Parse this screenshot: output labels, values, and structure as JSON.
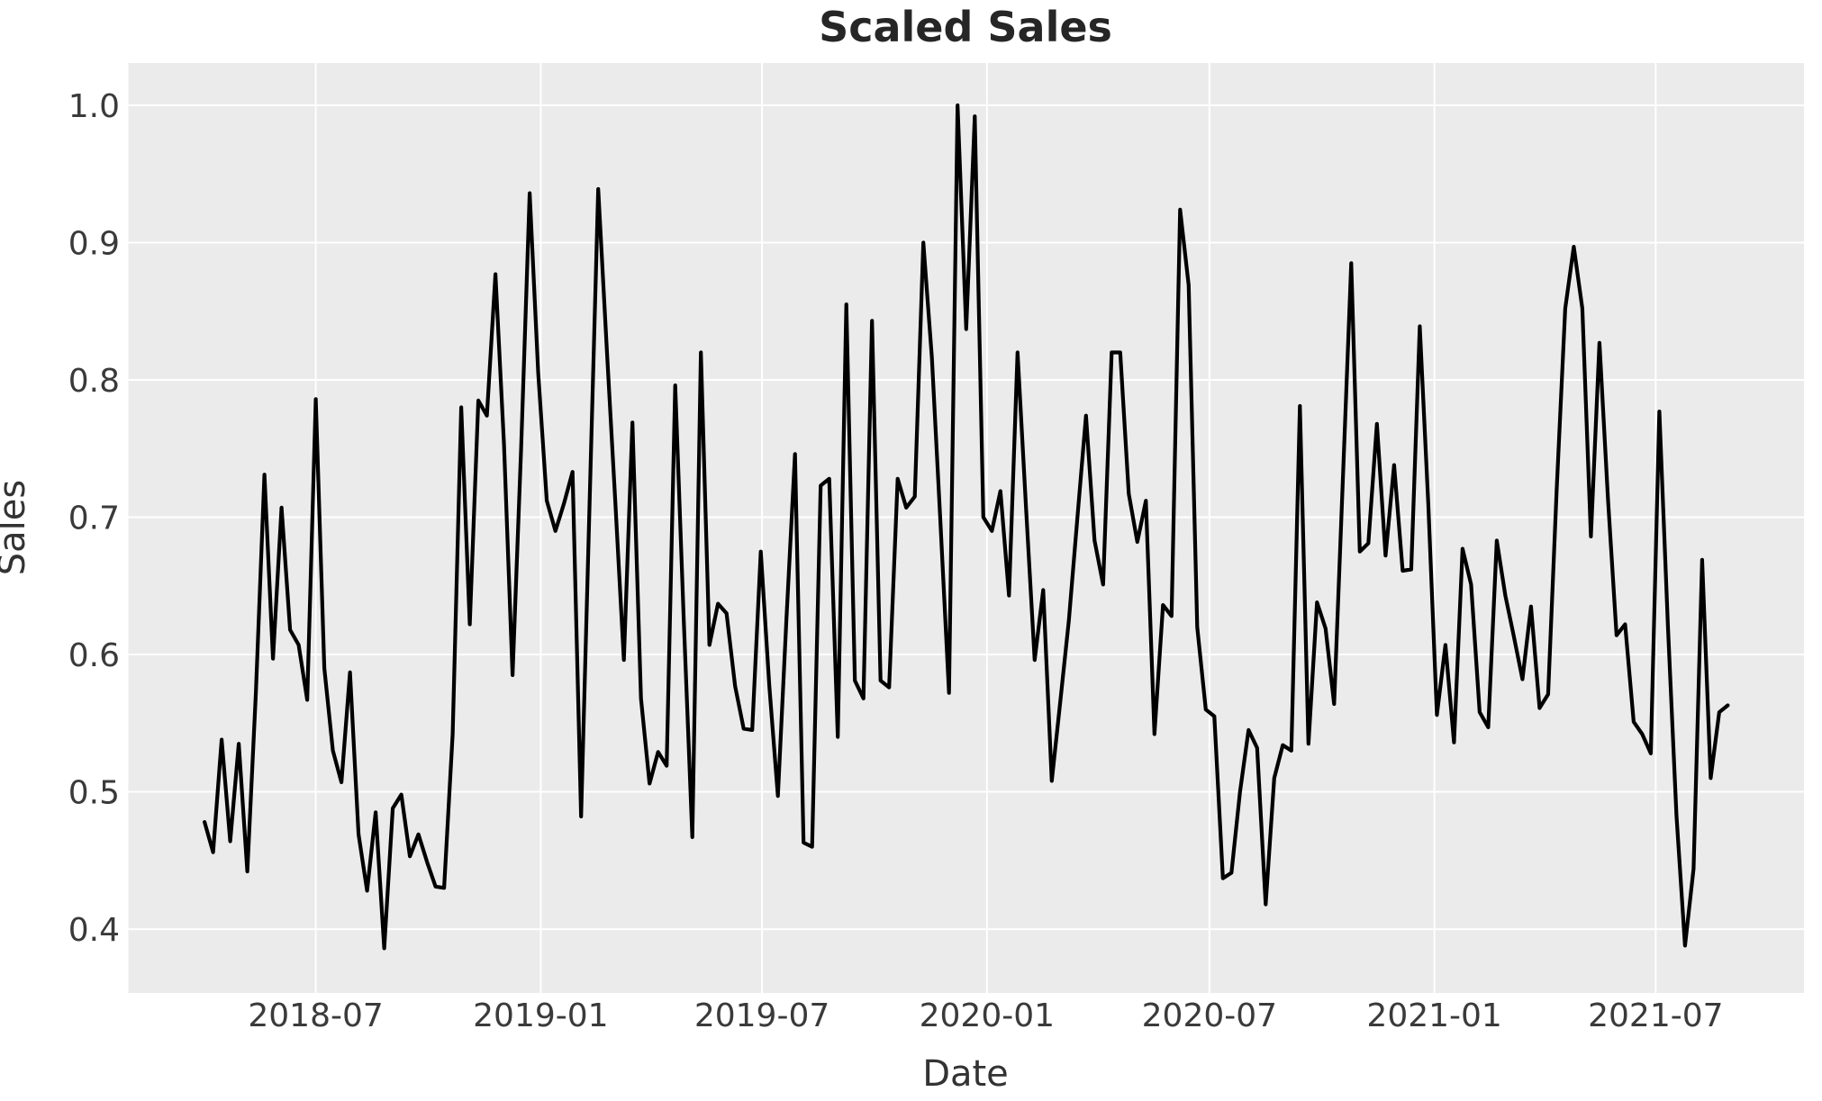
{
  "figure": {
    "background_color": "#ffffff"
  },
  "chart_data": {
    "type": "line",
    "title": "Scaled Sales",
    "xlabel": "Date",
    "ylabel": "Sales",
    "legend_position": "none",
    "grid": true,
    "plot_bg_color": "#ebebeb",
    "grid_color": "#ffffff",
    "line_color": "#000000",
    "line_width": 4.2,
    "x_start_date": "2018-04-01",
    "x_interval_days": 7,
    "n_points": 179,
    "x_tick_labels": [
      "2018-07",
      "2019-01",
      "2019-07",
      "2020-01",
      "2020-07",
      "2021-01",
      "2021-07"
    ],
    "x_tick_day_offsets": [
      91,
      275,
      456,
      640,
      822,
      1006,
      1187
    ],
    "y_ticks": [
      0.4,
      0.5,
      0.6,
      0.7,
      0.8,
      0.9,
      1.0
    ],
    "y_tick_labels": [
      "0.4",
      "0.5",
      "0.6",
      "0.7",
      "0.8",
      "0.9",
      "1.0"
    ],
    "ylim": [
      0.3535,
      1.0308
    ],
    "xlim_day_offsets": [
      -62.3,
      1308.3
    ],
    "values": [
      0.478,
      0.456,
      0.538,
      0.464,
      0.535,
      0.442,
      0.572,
      0.731,
      0.597,
      0.707,
      0.618,
      0.607,
      0.567,
      0.786,
      0.59,
      0.53,
      0.507,
      0.587,
      0.469,
      0.428,
      0.485,
      0.386,
      0.488,
      0.498,
      0.453,
      0.469,
      0.449,
      0.431,
      0.43,
      0.542,
      0.78,
      0.622,
      0.785,
      0.774,
      0.877,
      0.753,
      0.585,
      0.75,
      0.936,
      0.805,
      0.712,
      0.69,
      0.71,
      0.733,
      0.482,
      0.712,
      0.939,
      0.823,
      0.711,
      0.596,
      0.769,
      0.568,
      0.506,
      0.529,
      0.519,
      0.796,
      0.625,
      0.467,
      0.82,
      0.607,
      0.637,
      0.63,
      0.577,
      0.546,
      0.545,
      0.675,
      0.577,
      0.497,
      0.626,
      0.746,
      0.463,
      0.46,
      0.723,
      0.728,
      0.54,
      0.855,
      0.581,
      0.568,
      0.843,
      0.581,
      0.576,
      0.728,
      0.707,
      0.715,
      0.9,
      0.816,
      0.696,
      0.572,
      1.0,
      0.837,
      0.992,
      0.7,
      0.69,
      0.719,
      0.643,
      0.82,
      0.706,
      0.596,
      0.647,
      0.508,
      0.566,
      0.625,
      0.7,
      0.774,
      0.683,
      0.651,
      0.82,
      0.82,
      0.717,
      0.682,
      0.712,
      0.542,
      0.636,
      0.628,
      0.924,
      0.869,
      0.62,
      0.56,
      0.555,
      0.437,
      0.441,
      0.5,
      0.545,
      0.532,
      0.418,
      0.51,
      0.534,
      0.53,
      0.781,
      0.535,
      0.638,
      0.619,
      0.564,
      0.724,
      0.885,
      0.675,
      0.681,
      0.768,
      0.672,
      0.738,
      0.661,
      0.662,
      0.839,
      0.709,
      0.556,
      0.607,
      0.536,
      0.677,
      0.651,
      0.558,
      0.547,
      0.683,
      0.643,
      0.613,
      0.582,
      0.635,
      0.561,
      0.571,
      0.72,
      0.852,
      0.897,
      0.852,
      0.686,
      0.827,
      0.713,
      0.614,
      0.622,
      0.551,
      0.542,
      0.528,
      0.777,
      0.621,
      0.483,
      0.388,
      0.444,
      0.669,
      0.51,
      0.558,
      0.563
    ]
  }
}
